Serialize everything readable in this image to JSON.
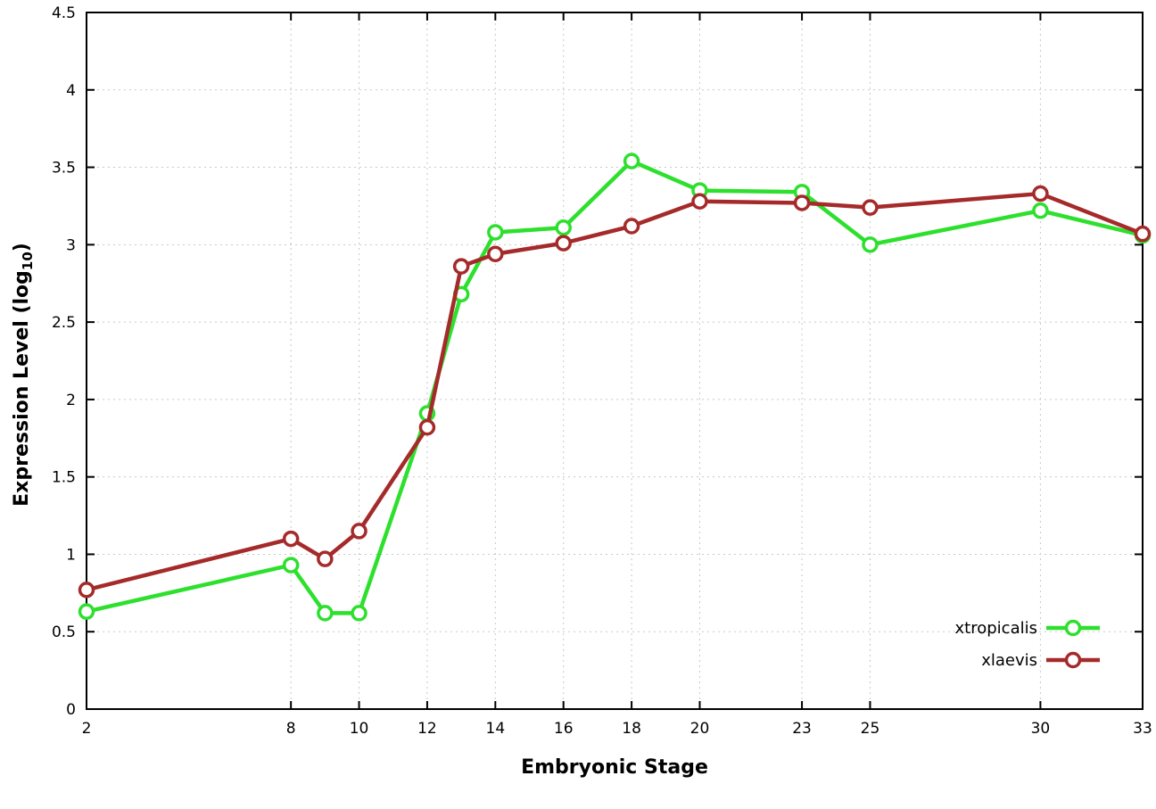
{
  "chart_data": {
    "type": "line",
    "title": "",
    "xlabel": "Embryonic Stage",
    "ylabel": "Expression Level (log10)",
    "ylabel_parts": {
      "prefix": "Expression Level (log",
      "sub": "10",
      "suffix": ")"
    },
    "x": [
      2,
      8,
      9,
      10,
      12,
      13,
      14,
      16,
      18,
      20,
      23,
      25,
      30,
      33
    ],
    "series": [
      {
        "name": "xtropicalis",
        "color": "#2de02d",
        "values": [
          0.63,
          0.93,
          0.62,
          0.62,
          1.91,
          2.68,
          3.08,
          3.11,
          3.54,
          3.35,
          3.34,
          3.0,
          3.22,
          3.06
        ]
      },
      {
        "name": "xlaevis",
        "color": "#a52a2a",
        "values": [
          0.77,
          1.1,
          0.97,
          1.15,
          1.82,
          2.86,
          2.94,
          3.01,
          3.12,
          3.28,
          3.27,
          3.24,
          3.33,
          3.07
        ]
      }
    ],
    "xticks": [
      2,
      8,
      10,
      12,
      14,
      16,
      18,
      20,
      23,
      25,
      30,
      33
    ],
    "yticks": [
      0,
      0.5,
      1,
      1.5,
      2,
      2.5,
      3,
      3.5,
      4,
      4.5
    ],
    "xlim": [
      2,
      33
    ],
    "ylim": [
      0,
      4.5
    ],
    "grid": true,
    "legend_position": "bottom-right",
    "colors": {
      "grid": "#c8c8c8",
      "axis": "#000000",
      "background": "#ffffff",
      "marker_fill": "#ffffff"
    }
  }
}
